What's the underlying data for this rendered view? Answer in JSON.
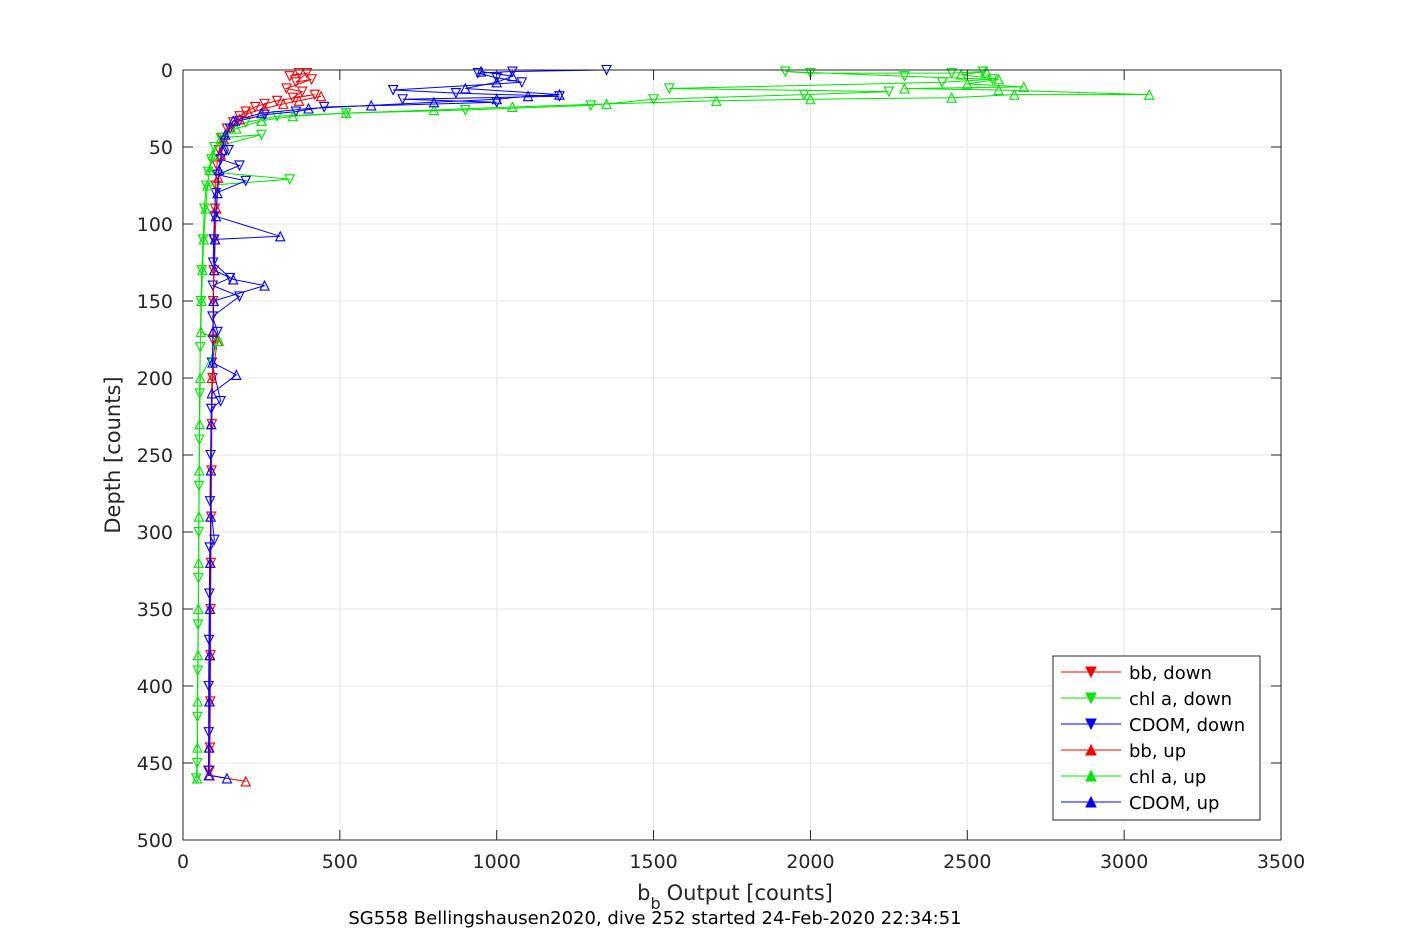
{
  "chart_data": {
    "type": "line",
    "title": "",
    "xlabel": "Output [counts]",
    "xlabel_symbol": "b",
    "xlabel_subscript": "b",
    "ylabel": "Depth [counts]",
    "caption": "SG558 Bellingshausen2020, dive 252 started 24-Feb-2020 22:34:51",
    "xlim": [
      0,
      3500
    ],
    "ylim": [
      0,
      500
    ],
    "y_reversed": true,
    "grid": true,
    "legend_position": "bottom-right",
    "xticks": [
      "0",
      "500",
      "1000",
      "1500",
      "2000",
      "2500",
      "3000",
      "3500"
    ],
    "yticks": [
      "0",
      "50",
      "100",
      "150",
      "200",
      "250",
      "300",
      "350",
      "400",
      "450",
      "500"
    ],
    "series": [
      {
        "name": "bb, down",
        "color": "#ff0000",
        "marker": "triangle-down",
        "points": [
          [
            370,
            2
          ],
          [
            340,
            4
          ],
          [
            395,
            2
          ],
          [
            360,
            8
          ],
          [
            410,
            6
          ],
          [
            330,
            12
          ],
          [
            380,
            14
          ],
          [
            350,
            18
          ],
          [
            420,
            16
          ],
          [
            300,
            20
          ],
          [
            260,
            22
          ],
          [
            230,
            24
          ],
          [
            200,
            27
          ],
          [
            180,
            30
          ],
          [
            160,
            34
          ],
          [
            140,
            38
          ],
          [
            125,
            44
          ],
          [
            115,
            52
          ],
          [
            108,
            62
          ],
          [
            104,
            75
          ],
          [
            102,
            90
          ],
          [
            100,
            110
          ],
          [
            98,
            130
          ],
          [
            96,
            150
          ],
          [
            95,
            175
          ],
          [
            94,
            200
          ],
          [
            92,
            230
          ],
          [
            91,
            260
          ],
          [
            90,
            290
          ],
          [
            89,
            320
          ],
          [
            88,
            350
          ],
          [
            88,
            380
          ],
          [
            87,
            410
          ],
          [
            86,
            440
          ],
          [
            85,
            455
          ]
        ]
      },
      {
        "name": "chl a, down",
        "color": "#00e600",
        "marker": "triangle-down",
        "points": [
          [
            2550,
            1
          ],
          [
            2450,
            2
          ],
          [
            2000,
            2
          ],
          [
            1920,
            1
          ],
          [
            2300,
            4
          ],
          [
            2580,
            6
          ],
          [
            2420,
            8
          ],
          [
            1550,
            12
          ],
          [
            2250,
            14
          ],
          [
            1980,
            16
          ],
          [
            1500,
            19
          ],
          [
            1300,
            23
          ],
          [
            900,
            26
          ],
          [
            520,
            28
          ],
          [
            300,
            30
          ],
          [
            200,
            34
          ],
          [
            150,
            38
          ],
          [
            120,
            44
          ],
          [
            250,
            42
          ],
          [
            100,
            50
          ],
          [
            90,
            58
          ],
          [
            80,
            66
          ],
          [
            340,
            71
          ],
          [
            74,
            75
          ],
          [
            68,
            90
          ],
          [
            64,
            110
          ],
          [
            60,
            130
          ],
          [
            57,
            150
          ],
          [
            55,
            180
          ],
          [
            53,
            210
          ],
          [
            52,
            240
          ],
          [
            51,
            270
          ],
          [
            50,
            300
          ],
          [
            49,
            330
          ],
          [
            48,
            360
          ],
          [
            47,
            390
          ],
          [
            46,
            420
          ],
          [
            45,
            450
          ],
          [
            42,
            460
          ]
        ]
      },
      {
        "name": "CDOM, down",
        "color": "#0000ff",
        "marker": "triangle-down",
        "points": [
          [
            1350,
            0
          ],
          [
            1050,
            1
          ],
          [
            940,
            2
          ],
          [
            1000,
            5
          ],
          [
            1080,
            8
          ],
          [
            670,
            13
          ],
          [
            870,
            15
          ],
          [
            1200,
            17
          ],
          [
            700,
            19
          ],
          [
            1000,
            21
          ],
          [
            450,
            24
          ],
          [
            360,
            27
          ],
          [
            260,
            29
          ],
          [
            180,
            33
          ],
          [
            150,
            38
          ],
          [
            130,
            46
          ],
          [
            145,
            52
          ],
          [
            120,
            58
          ],
          [
            180,
            62
          ],
          [
            110,
            68
          ],
          [
            200,
            72
          ],
          [
            104,
            80
          ],
          [
            100,
            95
          ],
          [
            98,
            110
          ],
          [
            96,
            125
          ],
          [
            150,
            135
          ],
          [
            95,
            140
          ],
          [
            180,
            147
          ],
          [
            94,
            160
          ],
          [
            110,
            170
          ],
          [
            92,
            190
          ],
          [
            120,
            215
          ],
          [
            90,
            220
          ],
          [
            88,
            250
          ],
          [
            86,
            280
          ],
          [
            100,
            305
          ],
          [
            85,
            310
          ],
          [
            84,
            340
          ],
          [
            83,
            370
          ],
          [
            82,
            400
          ],
          [
            82,
            430
          ],
          [
            81,
            455
          ]
        ]
      },
      {
        "name": "bb, up",
        "color": "#ff0000",
        "marker": "triangle-up",
        "points": [
          [
            200,
            462
          ],
          [
            85,
            458
          ],
          [
            84,
            440
          ],
          [
            85,
            410
          ],
          [
            86,
            380
          ],
          [
            86,
            350
          ],
          [
            87,
            320
          ],
          [
            88,
            290
          ],
          [
            89,
            260
          ],
          [
            90,
            230
          ],
          [
            92,
            200
          ],
          [
            110,
            176
          ],
          [
            95,
            170
          ],
          [
            97,
            150
          ],
          [
            99,
            130
          ],
          [
            102,
            110
          ],
          [
            106,
            90
          ],
          [
            112,
            70
          ],
          [
            120,
            55
          ],
          [
            130,
            45
          ],
          [
            150,
            37
          ],
          [
            180,
            32
          ],
          [
            210,
            28
          ],
          [
            260,
            25
          ],
          [
            320,
            22
          ],
          [
            370,
            20
          ],
          [
            440,
            17
          ]
        ]
      },
      {
        "name": "chl a, up",
        "color": "#00e600",
        "marker": "triangle-up",
        "points": [
          [
            45,
            460
          ],
          [
            46,
            440
          ],
          [
            47,
            410
          ],
          [
            48,
            380
          ],
          [
            49,
            350
          ],
          [
            50,
            320
          ],
          [
            51,
            290
          ],
          [
            52,
            260
          ],
          [
            53,
            230
          ],
          [
            55,
            200
          ],
          [
            115,
            176
          ],
          [
            57,
            170
          ],
          [
            59,
            150
          ],
          [
            62,
            130
          ],
          [
            66,
            110
          ],
          [
            72,
            90
          ],
          [
            78,
            75
          ],
          [
            85,
            65
          ],
          [
            95,
            55
          ],
          [
            120,
            45
          ],
          [
            170,
            38
          ],
          [
            250,
            33
          ],
          [
            350,
            30
          ],
          [
            520,
            28
          ],
          [
            800,
            26
          ],
          [
            1050,
            24
          ],
          [
            1350,
            22
          ],
          [
            1700,
            20
          ],
          [
            2000,
            19
          ],
          [
            2450,
            18
          ],
          [
            2650,
            16
          ],
          [
            3080,
            16
          ],
          [
            2600,
            13
          ],
          [
            2300,
            12
          ],
          [
            2680,
            11
          ],
          [
            2500,
            9
          ],
          [
            2600,
            6
          ],
          [
            2480,
            3
          ],
          [
            2560,
            1
          ]
        ]
      },
      {
        "name": "CDOM, up",
        "color": "#0000ff",
        "marker": "triangle-up",
        "points": [
          [
            140,
            460
          ],
          [
            82,
            458
          ],
          [
            83,
            440
          ],
          [
            84,
            410
          ],
          [
            85,
            380
          ],
          [
            86,
            350
          ],
          [
            87,
            320
          ],
          [
            88,
            290
          ],
          [
            89,
            260
          ],
          [
            90,
            230
          ],
          [
            92,
            210
          ],
          [
            170,
            198
          ],
          [
            94,
            190
          ],
          [
            96,
            170
          ],
          [
            98,
            150
          ],
          [
            260,
            140
          ],
          [
            160,
            136
          ],
          [
            100,
            130
          ],
          [
            102,
            110
          ],
          [
            310,
            108
          ],
          [
            105,
            95
          ],
          [
            110,
            80
          ],
          [
            115,
            65
          ],
          [
            125,
            52
          ],
          [
            135,
            42
          ],
          [
            160,
            33
          ],
          [
            250,
            28
          ],
          [
            400,
            25
          ],
          [
            600,
            23
          ],
          [
            800,
            21
          ],
          [
            1000,
            19
          ],
          [
            1100,
            17
          ],
          [
            1200,
            16
          ],
          [
            900,
            12
          ],
          [
            1000,
            8
          ],
          [
            1050,
            4
          ],
          [
            950,
            1
          ]
        ]
      }
    ]
  }
}
